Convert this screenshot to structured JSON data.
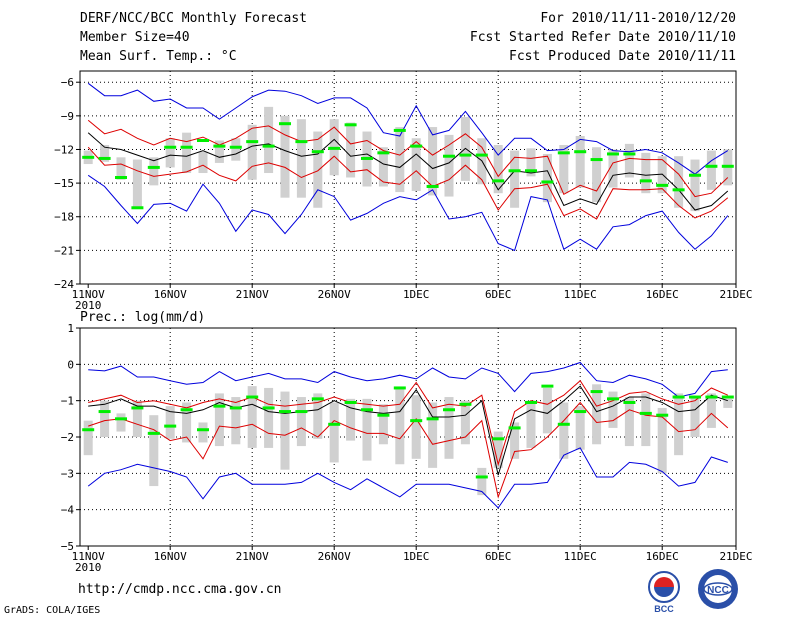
{
  "header": {
    "title": "DERF/NCC/BCC Monthly Forecast",
    "member": "Member Size=40",
    "variable": "Mean Surf. Temp.: °C",
    "period": "For 2010/11/11-2010/12/20",
    "refer": "Fcst Started Refer Date 2010/11/10",
    "produced": "Fcst Produced Date 2010/11/11"
  },
  "footer": {
    "url": "http://cmdp.ncc.cma.gov.cn",
    "credit": "GrADS: COLA/IGES",
    "logo1": "BCC",
    "logo2": "NCC"
  },
  "colors": {
    "box": "#d0d0d0",
    "median": "#00ee00",
    "mean": "#000000",
    "sd": "#dd0000",
    "ext": "#0000dd"
  },
  "x_ticks": [
    "11NOV",
    "16NOV",
    "21NOV",
    "26NOV",
    "1DEC",
    "6DEC",
    "11DEC",
    "16DEC",
    "21DEC"
  ],
  "x_year": "2010",
  "chart_data": [
    {
      "type": "line",
      "title": "Mean Surf. Temp.: °C",
      "x_start": "2010-11-11",
      "days": 40,
      "ylim": [
        -24,
        -5
      ],
      "yticks": [
        -24,
        -21,
        -18,
        -15,
        -12,
        -9,
        -6
      ],
      "series": [
        {
          "name": "max",
          "values": [
            -6.1,
            -7.2,
            -7.2,
            -6.7,
            -7.7,
            -7.5,
            -8.3,
            -8.3,
            -9.3,
            -8.3,
            -7.3,
            -6.7,
            -6.8,
            -7.2,
            -7.9,
            -7.4,
            -7.4,
            -8.3,
            -10.5,
            -10.8,
            -8.1,
            -10.7,
            -10.3,
            -8.6,
            -10.5,
            -12.5,
            -11.0,
            -11.0,
            -12.1,
            -12.0,
            -11.1,
            -11.3,
            -12.1,
            -12.2,
            -12.0,
            -12.3,
            -13.2,
            -14.2,
            -13.0,
            -12.1
          ]
        },
        {
          "name": "mean_plus_sd",
          "values": [
            -9.4,
            -10.6,
            -10.2,
            -11.0,
            -11.6,
            -11.0,
            -11.3,
            -10.9,
            -11.6,
            -11.0,
            -10.1,
            -9.9,
            -10.7,
            -11.3,
            -11.1,
            -10.0,
            -11.5,
            -11.2,
            -12.1,
            -12.5,
            -11.3,
            -12.5,
            -11.6,
            -10.6,
            -11.8,
            -14.4,
            -12.7,
            -12.8,
            -12.6,
            -16.0,
            -15.2,
            -15.7,
            -13.2,
            -12.8,
            -12.9,
            -12.9,
            -14.2,
            -16.2,
            -15.9,
            -14.5
          ]
        },
        {
          "name": "mean",
          "values": [
            -10.5,
            -11.8,
            -12.0,
            -12.5,
            -13.0,
            -12.5,
            -12.6,
            -12.1,
            -12.7,
            -12.4,
            -11.7,
            -11.5,
            -12.1,
            -12.6,
            -12.4,
            -11.1,
            -12.6,
            -12.4,
            -13.3,
            -13.6,
            -12.4,
            -13.7,
            -13.2,
            -11.9,
            -13.0,
            -15.6,
            -13.9,
            -14.1,
            -13.9,
            -17.0,
            -16.4,
            -16.9,
            -14.3,
            -14.1,
            -14.3,
            -14.2,
            -15.6,
            -17.4,
            -17.0,
            -15.7
          ]
        },
        {
          "name": "mean_minus_sd",
          "values": [
            -11.8,
            -13.4,
            -13.3,
            -13.9,
            -14.4,
            -14.2,
            -14.0,
            -13.4,
            -14.3,
            -14.8,
            -13.5,
            -13.2,
            -13.6,
            -14.5,
            -13.9,
            -12.6,
            -14.0,
            -13.8,
            -14.9,
            -15.1,
            -13.9,
            -15.3,
            -14.7,
            -13.4,
            -14.7,
            -17.4,
            -15.5,
            -15.4,
            -15.1,
            -17.9,
            -17.3,
            -18.2,
            -15.5,
            -15.6,
            -15.6,
            -15.5,
            -17.0,
            -18.1,
            -17.5,
            -16.3
          ]
        },
        {
          "name": "min",
          "values": [
            -14.3,
            -15.3,
            -17.0,
            -18.6,
            -16.9,
            -16.8,
            -17.5,
            -15.1,
            -16.8,
            -19.3,
            -17.4,
            -17.8,
            -19.5,
            -17.8,
            -15.6,
            -16.2,
            -18.3,
            -17.7,
            -16.8,
            -16.2,
            -16.5,
            -15.6,
            -18.2,
            -18.0,
            -17.6,
            -20.4,
            -21.0,
            -16.2,
            -16.5,
            -20.9,
            -20.0,
            -20.9,
            -18.9,
            -18.7,
            -17.9,
            -17.5,
            -19.4,
            -20.9,
            -19.7,
            -17.9
          ]
        },
        {
          "name": "median",
          "values": [
            -12.7,
            -12.8,
            -14.5,
            -17.2,
            -13.6,
            -11.8,
            -11.8,
            -11.2,
            -11.7,
            -11.8,
            -11.3,
            -11.7,
            -9.7,
            -11.3,
            -12.2,
            -11.9,
            -9.8,
            -12.8,
            -12.3,
            -10.3,
            -11.7,
            -15.3,
            -12.6,
            -12.5,
            -12.5,
            -14.8,
            -13.9,
            -13.9,
            -14.9,
            -12.3,
            -12.2,
            -12.9,
            -12.4,
            -12.4,
            -14.8,
            -15.2,
            -15.6,
            -14.3,
            -13.5,
            -13.5
          ]
        },
        {
          "name": "box_top",
          "values": [
            -12.1,
            -11.6,
            -12.7,
            -12.9,
            -12.7,
            -11.0,
            -10.5,
            -12.2,
            -11.2,
            -11.0,
            -9.8,
            -8.2,
            -9.0,
            -9.3,
            -10.4,
            -9.3,
            -9.6,
            -10.4,
            -11.8,
            -10.0,
            -11.0,
            -10.0,
            -10.7,
            -9.1,
            -11.0,
            -11.6,
            -12.1,
            -11.9,
            -12.4,
            -11.6,
            -10.8,
            -11.8,
            -12.0,
            -11.5,
            -12.3,
            -12.6,
            -12.6,
            -12.9,
            -12.1,
            -12.0
          ]
        },
        {
          "name": "box_bottom",
          "values": [
            -13.3,
            -13.1,
            -14.7,
            -17.1,
            -15.2,
            -13.6,
            -14.1,
            -14.1,
            -13.2,
            -13.0,
            -14.7,
            -14.1,
            -16.3,
            -16.3,
            -17.2,
            -14.3,
            -14.5,
            -15.3,
            -15.3,
            -15.8,
            -15.7,
            -16.1,
            -16.2,
            -14.8,
            -15.1,
            -15.9,
            -17.2,
            -14.4,
            -16.7,
            -15.9,
            -15.4,
            -16.7,
            -15.4,
            -14.5,
            -15.9,
            -15.9,
            -17.2,
            -17.5,
            -15.6,
            -15.2
          ]
        }
      ]
    },
    {
      "type": "line",
      "title": "Prec.: log(mm/d)",
      "x_start": "2010-11-11",
      "days": 40,
      "ylim": [
        -5,
        1
      ],
      "yticks": [
        -5,
        -4,
        -3,
        -2,
        -1,
        0,
        1
      ],
      "series": [
        {
          "name": "max",
          "values": [
            -0.15,
            -0.18,
            -0.05,
            -0.35,
            -0.35,
            -0.45,
            -0.55,
            -0.5,
            -0.2,
            -0.45,
            -0.35,
            -0.25,
            -0.4,
            -0.4,
            -0.5,
            -0.2,
            -0.35,
            -0.45,
            -0.4,
            -0.3,
            -0.4,
            -0.1,
            -0.35,
            -0.4,
            -0.1,
            -0.25,
            -0.75,
            -0.25,
            -0.2,
            -0.1,
            0.05,
            -0.45,
            -0.5,
            -0.3,
            -0.4,
            -0.55,
            -0.9,
            -0.8,
            -0.2,
            -0.15
          ]
        },
        {
          "name": "mean_plus_sd",
          "values": [
            -1.05,
            -0.95,
            -0.85,
            -1.05,
            -1.0,
            -1.1,
            -1.2,
            -1.05,
            -0.95,
            -1.05,
            -0.9,
            -1.1,
            -1.15,
            -1.1,
            -1.05,
            -0.9,
            -1.05,
            -1.1,
            -1.15,
            -1.1,
            -0.5,
            -1.2,
            -1.1,
            -1.15,
            -0.85,
            -2.75,
            -1.3,
            -1.0,
            -1.1,
            -0.85,
            -0.45,
            -1.15,
            -1.0,
            -0.8,
            -0.75,
            -0.95,
            -1.1,
            -1.0,
            -0.65,
            -0.85
          ]
        },
        {
          "name": "mean",
          "values": [
            -1.15,
            -1.1,
            -0.95,
            -1.15,
            -1.15,
            -1.3,
            -1.35,
            -1.25,
            -1.05,
            -1.2,
            -1.1,
            -1.3,
            -1.35,
            -1.3,
            -1.25,
            -1.0,
            -1.2,
            -1.3,
            -1.35,
            -1.3,
            -0.7,
            -1.45,
            -1.45,
            -1.4,
            -1.0,
            -3.05,
            -1.5,
            -1.25,
            -1.35,
            -1.0,
            -0.6,
            -1.3,
            -1.15,
            -0.9,
            -0.9,
            -1.05,
            -1.3,
            -1.25,
            -0.85,
            -1.0
          ]
        },
        {
          "name": "mean_minus_sd",
          "values": [
            -1.7,
            -1.55,
            -1.5,
            -1.65,
            -1.8,
            -2.1,
            -2.0,
            -2.6,
            -1.7,
            -1.75,
            -1.65,
            -1.9,
            -1.95,
            -1.75,
            -2.0,
            -1.55,
            -1.75,
            -1.9,
            -1.9,
            -2.05,
            -1.5,
            -2.2,
            -2.1,
            -2.0,
            -1.55,
            -3.65,
            -2.4,
            -2.35,
            -2.0,
            -1.55,
            -1.05,
            -1.6,
            -1.55,
            -1.25,
            -1.4,
            -1.45,
            -1.85,
            -1.8,
            -1.35,
            -1.75
          ]
        },
        {
          "name": "min",
          "values": [
            -3.35,
            -3.0,
            -2.9,
            -2.75,
            -2.85,
            -2.95,
            -3.1,
            -3.7,
            -3.1,
            -3.0,
            -3.3,
            -3.3,
            -3.3,
            -3.25,
            -3.0,
            -3.25,
            -3.45,
            -3.15,
            -3.4,
            -3.65,
            -3.3,
            -3.3,
            -3.3,
            -3.4,
            -3.5,
            -3.95,
            -3.3,
            -3.3,
            -3.25,
            -2.5,
            -2.3,
            -3.1,
            -3.1,
            -2.7,
            -2.75,
            -2.95,
            -3.35,
            -3.25,
            -2.55,
            -2.7
          ]
        },
        {
          "name": "median",
          "values": [
            -1.8,
            -1.3,
            -1.5,
            -1.2,
            -1.9,
            -1.7,
            -1.25,
            -1.8,
            -1.15,
            -1.2,
            -0.9,
            -1.2,
            -1.3,
            -1.3,
            -0.95,
            -1.65,
            -1.05,
            -1.25,
            -1.4,
            -0.65,
            -1.55,
            -1.5,
            -1.25,
            -1.1,
            -3.1,
            -2.05,
            -1.75,
            -1.05,
            -0.6,
            -1.65,
            -1.3,
            -0.75,
            -0.95,
            -1.05,
            -1.35,
            -1.4,
            -0.9,
            -0.9,
            -0.9,
            -0.9
          ]
        },
        {
          "name": "box_top",
          "values": [
            -1.55,
            -1.0,
            -1.35,
            -1.0,
            -1.4,
            -1.15,
            -1.05,
            -1.6,
            -0.8,
            -0.9,
            -0.6,
            -0.65,
            -0.75,
            -0.9,
            -0.8,
            -1.05,
            -0.95,
            -0.95,
            -1.1,
            -0.65,
            -0.85,
            -1.05,
            -0.9,
            -1.0,
            -2.85,
            -1.85,
            -1.6,
            -1.0,
            -0.65,
            -1.05,
            -1.15,
            -0.55,
            -0.75,
            -0.9,
            -0.8,
            -1.2,
            -0.8,
            -0.9,
            -0.8,
            -0.95
          ]
        },
        {
          "name": "box_bottom",
          "values": [
            -2.5,
            -2.0,
            -1.85,
            -2.0,
            -3.35,
            -2.05,
            -2.15,
            -2.15,
            -2.25,
            -2.2,
            -2.3,
            -2.3,
            -2.9,
            -2.25,
            -2.05,
            -2.7,
            -2.1,
            -2.65,
            -2.2,
            -2.75,
            -2.6,
            -2.85,
            -2.6,
            -2.2,
            -3.6,
            -2.85,
            -2.6,
            -2.3,
            -1.9,
            -2.6,
            -2.35,
            -2.2,
            -1.75,
            -2.25,
            -2.25,
            -3.0,
            -2.5,
            -2.0,
            -1.75,
            -1.2
          ]
        }
      ]
    }
  ]
}
